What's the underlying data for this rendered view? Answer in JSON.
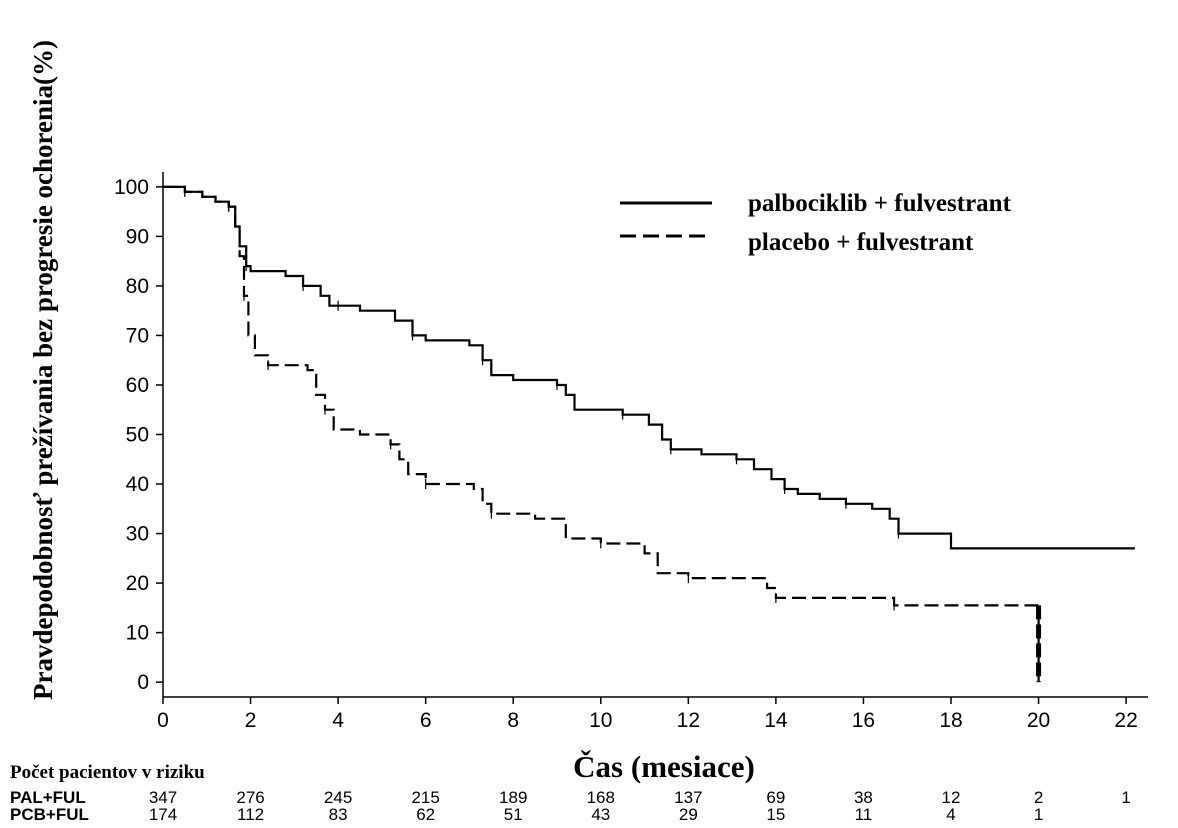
{
  "chart_data": {
    "type": "line",
    "title": "",
    "ylabel": "Pravdepodobnosť prežívania bez progresie ochorenia(%)",
    "xlabel": "Čas (mesiace)",
    "xlim": [
      0,
      22.5
    ],
    "ylim": [
      -3,
      103
    ],
    "x_ticks": [
      "0",
      "2",
      "4",
      "6",
      "8",
      "10",
      "12",
      "14",
      "16",
      "18",
      "20",
      "22"
    ],
    "y_ticks": [
      "0",
      "10",
      "20",
      "30",
      "40",
      "50",
      "60",
      "70",
      "80",
      "90",
      "100"
    ],
    "legend_position": "top-right",
    "series": [
      {
        "name": "palbociklib + fulvestrant",
        "style": "solid",
        "x": [
          0,
          0.5,
          0.9,
          1.2,
          1.5,
          1.65,
          1.75,
          1.9,
          2.0,
          2.8,
          3.2,
          3.6,
          3.8,
          4.0,
          4.5,
          5.3,
          5.7,
          6.0,
          7.0,
          7.3,
          7.5,
          8.0,
          9.0,
          9.2,
          9.4,
          10.5,
          11.1,
          11.4,
          11.6,
          12.0,
          12.3,
          13.1,
          13.5,
          13.9,
          14.2,
          14.5,
          15.0,
          15.6,
          16.2,
          16.6,
          16.8,
          18.0,
          22.2
        ],
        "y": [
          100,
          99,
          98,
          97,
          96,
          92,
          88,
          84,
          83,
          82,
          80,
          78,
          76,
          76,
          75,
          73,
          70,
          69,
          68,
          65,
          62,
          61,
          60,
          58,
          55,
          54,
          52,
          49,
          47,
          47,
          46,
          45,
          43,
          41,
          39,
          38,
          37,
          36,
          35,
          33,
          30,
          27,
          27
        ]
      },
      {
        "name": "placebo + fulvestrant",
        "style": "dashed",
        "x": [
          0,
          0.5,
          0.9,
          1.2,
          1.5,
          1.65,
          1.75,
          1.85,
          1.95,
          2.1,
          2.4,
          3.3,
          3.5,
          3.7,
          3.9,
          4.5,
          5.2,
          5.4,
          5.6,
          6.0,
          7.1,
          7.3,
          7.5,
          8.5,
          9.2,
          10.0,
          11.0,
          11.3,
          12.0,
          13.5,
          13.8,
          14.0,
          15.0,
          16.5,
          16.7,
          20.0,
          20.0
        ],
        "y": [
          100,
          99,
          98,
          97,
          96,
          92,
          86,
          78,
          70,
          66,
          64,
          63,
          58,
          55,
          51,
          50,
          48,
          45,
          42,
          40,
          39,
          36,
          34,
          33,
          29,
          28,
          26,
          22,
          21,
          21,
          19,
          17,
          17,
          17,
          15.5,
          15.5,
          0
        ]
      }
    ],
    "risk_table": {
      "title": "Počet pacientov v riziku",
      "rows": [
        {
          "label": "PAL+FUL",
          "values": [
            "347",
            "276",
            "245",
            "215",
            "189",
            "168",
            "137",
            "69",
            "38",
            "12",
            "2",
            "1"
          ]
        },
        {
          "label": "PCB+FUL",
          "values": [
            "174",
            "112",
            "83",
            "62",
            "51",
            "43",
            "29",
            "15",
            "11",
            "4",
            "1",
            ""
          ]
        }
      ]
    }
  }
}
